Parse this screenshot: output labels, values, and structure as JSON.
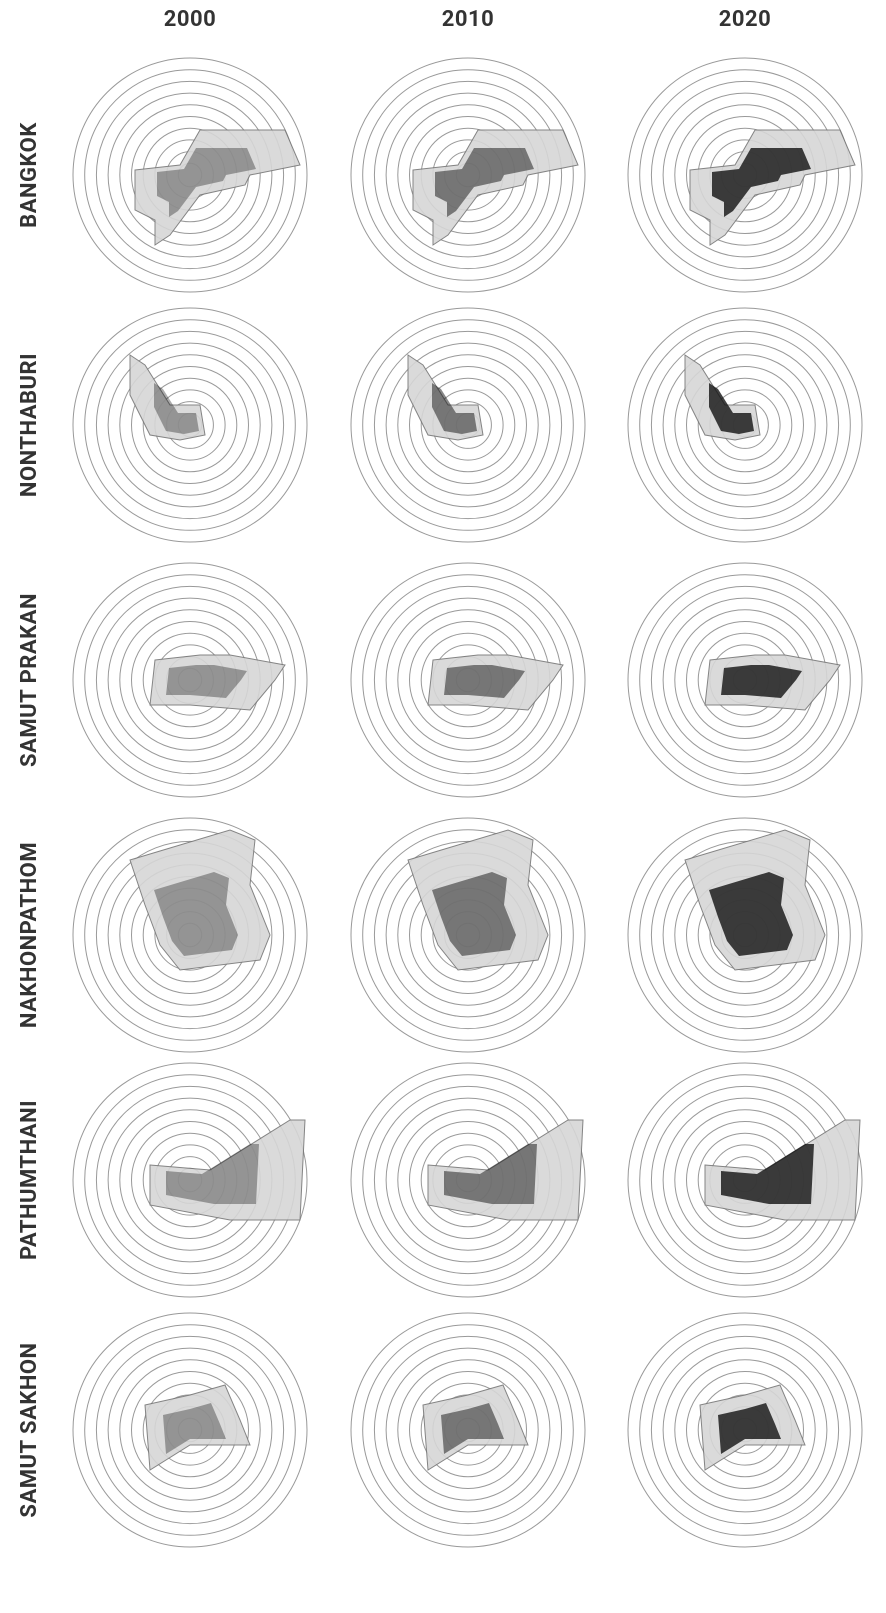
{
  "columns": [
    "2000",
    "2010",
    "2020"
  ],
  "rows": [
    "BANGKOK",
    "NONTHABURI",
    "SAMUT PRAKAN",
    "NAKHONPATHOM",
    "PATHUMTHANI",
    "SAMUT SAKHON"
  ]
}
